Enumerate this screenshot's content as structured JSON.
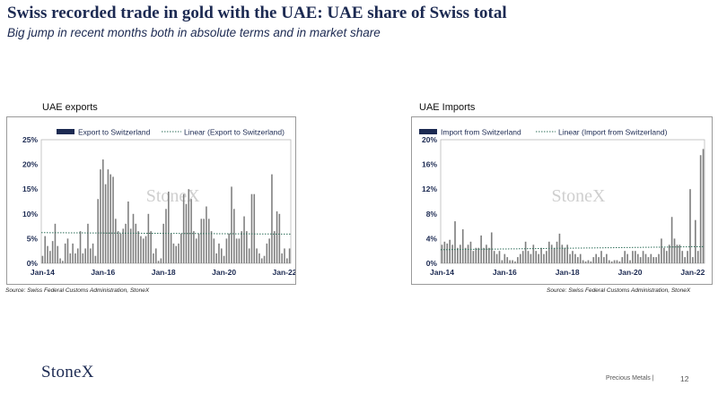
{
  "header": {
    "title": "Swiss recorded trade in gold with the UAE:  UAE share of Swiss total",
    "subtitle": "Big jump in recent months both in absolute terms and in market share"
  },
  "watermark": "StoneX",
  "footer": {
    "logo": "StoneX",
    "label": "Precious Metals |",
    "page": "12"
  },
  "chart_data": [
    {
      "type": "bar",
      "title": "UAE exports",
      "source": "Source: Swiss Federal Customs Administration, StoneX",
      "legend": [
        "Export to Switzerland",
        "Linear (Export to Switzerland)"
      ],
      "legend_placement": "top",
      "x_tick_labels": [
        "Jan-14",
        "Jan-16",
        "Jan-18",
        "Jan-20",
        "Jan-22"
      ],
      "y_tick_labels": [
        "0%",
        "5%",
        "10%",
        "15%",
        "20%",
        "25%"
      ],
      "ylim": [
        0,
        25
      ],
      "series": [
        {
          "name": "Export to Switzerland",
          "values": [
            1.5,
            5.5,
            3.5,
            2.5,
            4.5,
            8,
            3.5,
            1,
            0.5,
            4,
            5,
            2,
            4,
            2,
            3,
            6.5,
            2,
            3,
            8,
            3,
            4,
            1.5,
            13,
            19,
            21,
            16,
            19,
            18,
            17.5,
            9,
            6.5,
            6,
            7,
            8,
            12.5,
            7,
            10,
            8,
            6.5,
            5.5,
            5,
            5.5,
            10,
            6.5,
            2,
            3,
            0.5,
            1,
            8,
            11,
            14.5,
            6,
            4,
            3.5,
            4,
            6,
            14,
            12,
            15,
            13,
            6.5,
            5,
            6,
            9,
            9,
            11.5,
            9,
            6.5,
            5,
            2,
            4,
            3,
            1.5,
            5,
            6,
            15.5,
            11,
            5,
            5,
            6.5,
            9.5,
            6.5,
            3,
            14,
            14,
            3,
            2,
            1,
            1.5,
            4,
            5,
            18,
            6.5,
            10.5,
            10,
            2,
            3,
            1,
            3
          ],
          "color": "#7f7f7f"
        },
        {
          "name": "Linear (Export to Switzerland)",
          "values": [
            6.2,
            5.9
          ],
          "color": "#1c2a52"
        }
      ]
    },
    {
      "type": "bar",
      "title": "UAE Imports",
      "source": "Source: Swiss Federal Customs Administration,  StoneX",
      "legend": [
        "Import from Switzerland",
        "Linear (Import from Switzerland)"
      ],
      "legend_placement": "top",
      "x_tick_labels": [
        "Jan-14",
        "Jan-16",
        "Jan-18",
        "Jan-20",
        "Jan-22"
      ],
      "y_tick_labels": [
        "0%",
        "4%",
        "8%",
        "12%",
        "16%",
        "20%"
      ],
      "ylim": [
        0,
        20
      ],
      "series": [
        {
          "name": "Import from Switzerland",
          "values": [
            3,
            3.5,
            3.2,
            3.8,
            3,
            6.8,
            2.5,
            3,
            5.5,
            2.5,
            3,
            3.5,
            2,
            2.5,
            2.5,
            4.5,
            2.5,
            3,
            2.5,
            5,
            2,
            1.5,
            2,
            0.5,
            1.5,
            1,
            0.5,
            0.5,
            0.3,
            1,
            1.5,
            2,
            3.5,
            2,
            1.5,
            3,
            2,
            1.5,
            2.5,
            1.5,
            2,
            3.5,
            3,
            2.5,
            3.5,
            4.8,
            3,
            2.5,
            3,
            1.5,
            2,
            1.5,
            1,
            1.5,
            0.5,
            0.3,
            0.5,
            0.3,
            1,
            1.5,
            1,
            2,
            1,
            1.5,
            0.5,
            0.3,
            0.5,
            0.5,
            0.3,
            1,
            2,
            1.5,
            0.5,
            2,
            2,
            1.5,
            1,
            2,
            1.5,
            1,
            1.5,
            1,
            1,
            1.5,
            4,
            2.5,
            2,
            3,
            7.5,
            4,
            3,
            3,
            2,
            1,
            2,
            12,
            1,
            7,
            2,
            17.5,
            18.5
          ],
          "color": "#7f7f7f"
        },
        {
          "name": "Linear (Import from Switzerland)",
          "values": [
            2.2,
            2.7
          ],
          "color": "#1c2a52"
        }
      ]
    }
  ]
}
